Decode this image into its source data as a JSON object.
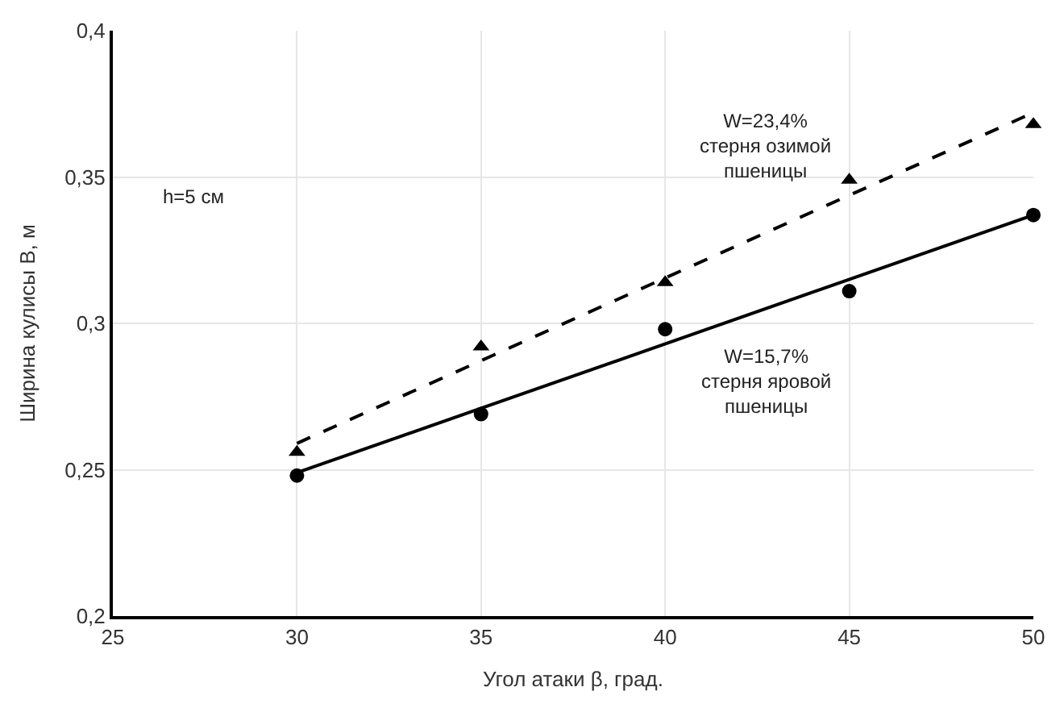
{
  "chart_data": {
    "type": "scatter",
    "xlabel": "Угол атаки β, град.",
    "ylabel": "Ширина кулисы В, м",
    "xlim": [
      25,
      50
    ],
    "xticks": [
      25,
      30,
      35,
      40,
      45,
      50
    ],
    "ylim": [
      0.2,
      0.4
    ],
    "yticks": [
      {
        "value": 0.2,
        "label": "0,2"
      },
      {
        "value": 0.25,
        "label": "0,25"
      },
      {
        "value": 0.3,
        "label": "0,3"
      },
      {
        "value": 0.35,
        "label": "0,35"
      },
      {
        "value": 0.4,
        "label": "0,4"
      }
    ],
    "grid": true,
    "legend": false,
    "series": [
      {
        "marker": "circle",
        "color": "#000000",
        "x": [
          30,
          35,
          40,
          45,
          50
        ],
        "values": [
          0.248,
          0.269,
          0.298,
          0.311,
          0.337
        ]
      },
      {
        "marker": "triangle",
        "color": "#000000",
        "x": [
          30,
          35,
          40,
          45,
          50
        ],
        "values": [
          0.256,
          0.292,
          0.314,
          0.349,
          0.368
        ]
      },
      {
        "type": "line",
        "line_style": "solid",
        "marker": "none",
        "color": "#000000",
        "x": [
          30,
          50
        ],
        "values": [
          0.249,
          0.337
        ]
      },
      {
        "type": "line",
        "line_style": "dashed",
        "marker": "none",
        "color": "#000000",
        "x": [
          30,
          50
        ],
        "values": [
          0.259,
          0.372
        ]
      }
    ],
    "annotations": [
      "h=5 см",
      "W=23,4%\nстерня озимой\nпшеницы",
      "W=15,7%\nстерня яровой\nпшеницы"
    ]
  }
}
